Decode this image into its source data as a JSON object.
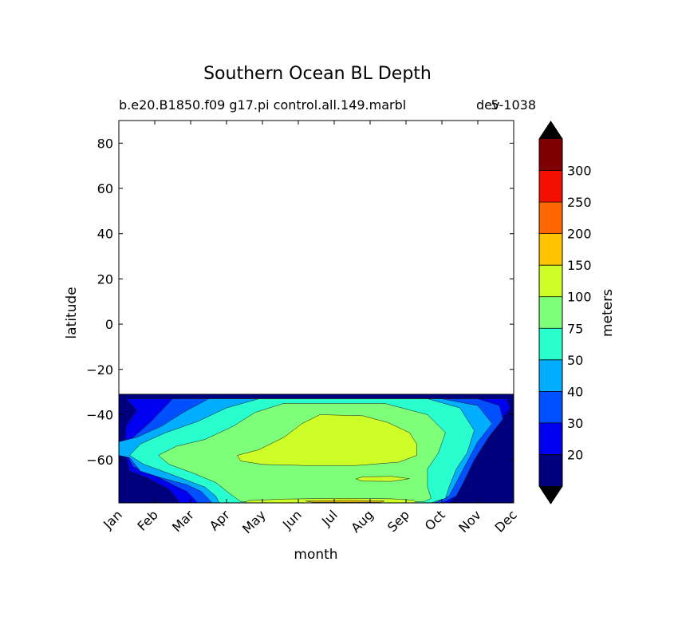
{
  "chart_data": {
    "type": "contourf",
    "title": "Southern Ocean BL Depth",
    "subtitle_left": "b.e20.B1850.f09 g17.pi control.all.149.marbl",
    "subtitle_right": "5-1038",
    "subtitle_overlap": "dev",
    "xlabel": "month",
    "ylabel": "latitude",
    "months": [
      "Jan",
      "Feb",
      "Mar",
      "Apr",
      "May",
      "Jun",
      "Jul",
      "Aug",
      "Sep",
      "Oct",
      "Nov",
      "Dec"
    ],
    "xlim": [
      0,
      11
    ],
    "ylim": [
      -79,
      90
    ],
    "yticks": [
      80,
      60,
      40,
      20,
      0,
      -20,
      -40,
      -60
    ],
    "ytick_labels": [
      "80",
      "60",
      "40",
      "20",
      "0",
      "−20",
      "−40",
      "−60"
    ],
    "data_lat_range": [
      -79,
      -31
    ],
    "colorbar": {
      "label": "meters",
      "levels": [
        10,
        20,
        30,
        40,
        50,
        75,
        100,
        150,
        200,
        250,
        300,
        350
      ],
      "tick_labels": [
        "20",
        "30",
        "40",
        "50",
        "75",
        "100",
        "150",
        "200",
        "250",
        "300"
      ],
      "colors": [
        "#00007f",
        "#0000f0",
        "#0050ff",
        "#00adff",
        "#29ffce",
        "#7dff7a",
        "#cefe28",
        "#ffc400",
        "#ff6800",
        "#f40f00",
        "#7f0000"
      ],
      "extend_low_color": "#000000",
      "extend_high_color": "#000000"
    },
    "regions": [
      {
        "level": "10-20",
        "polygon": [
          [
            0,
            -31
          ],
          [
            11,
            -31
          ],
          [
            11,
            -79
          ],
          [
            0,
            -79
          ]
        ]
      },
      {
        "level": "20-30",
        "polygon": [
          [
            0.2,
            -33
          ],
          [
            10.8,
            -33
          ],
          [
            10.9,
            -37
          ],
          [
            10.4,
            -48
          ],
          [
            10,
            -58
          ],
          [
            9.7,
            -67
          ],
          [
            9.4,
            -76
          ],
          [
            9.2,
            -79
          ],
          [
            1.7,
            -79
          ],
          [
            1.4,
            -73
          ],
          [
            0.8,
            -68
          ],
          [
            0.3,
            -65
          ],
          [
            0.15,
            -55
          ],
          [
            0.2,
            -45
          ],
          [
            0.5,
            -38
          ]
        ]
      },
      {
        "level": "30-40",
        "polygon": [
          [
            1.5,
            -33
          ],
          [
            10,
            -33
          ],
          [
            10.6,
            -36
          ],
          [
            10.7,
            -42
          ],
          [
            10.3,
            -50
          ],
          [
            9.9,
            -60
          ],
          [
            9.6,
            -70
          ],
          [
            9.4,
            -76
          ],
          [
            9.0,
            -79
          ],
          [
            2.2,
            -79
          ],
          [
            1.9,
            -74
          ],
          [
            1.5,
            -71
          ],
          [
            0.9,
            -66
          ],
          [
            0.4,
            -63
          ],
          [
            0.2,
            -57
          ],
          [
            0.4,
            -50
          ],
          [
            0.9,
            -43
          ]
        ]
      },
      {
        "level": "40-50",
        "polygon": [
          [
            2.5,
            -33
          ],
          [
            9,
            -33
          ],
          [
            10,
            -36
          ],
          [
            10.4,
            -44
          ],
          [
            10,
            -52
          ],
          [
            9.7,
            -61
          ],
          [
            9.4,
            -70
          ],
          [
            9.2,
            -76
          ],
          [
            8.8,
            -79
          ],
          [
            2.6,
            -79
          ],
          [
            2.3,
            -74
          ],
          [
            1.9,
            -71
          ],
          [
            1.2,
            -68
          ],
          [
            0.6,
            -65
          ],
          [
            0.3,
            -59
          ],
          [
            0,
            -58
          ],
          [
            0,
            -52
          ],
          [
            0.5,
            -50
          ],
          [
            1.2,
            -45
          ],
          [
            1.8,
            -39
          ]
        ]
      },
      {
        "level": "50-75",
        "polygon": [
          [
            3.9,
            -33
          ],
          [
            8.6,
            -33
          ],
          [
            9.5,
            -37
          ],
          [
            9.9,
            -47
          ],
          [
            9.7,
            -57
          ],
          [
            9.4,
            -64
          ],
          [
            9.2,
            -72
          ],
          [
            9.1,
            -77
          ],
          [
            8.7,
            -79
          ],
          [
            2.8,
            -79
          ],
          [
            2.7,
            -76
          ],
          [
            2.4,
            -72
          ],
          [
            1.9,
            -69
          ],
          [
            1.4,
            -66
          ],
          [
            0.7,
            -62
          ],
          [
            0.3,
            -58
          ],
          [
            0.6,
            -53
          ],
          [
            1.3,
            -48
          ],
          [
            2.2,
            -43
          ],
          [
            3.0,
            -37
          ]
        ]
      },
      {
        "level": "75-100",
        "polygon": [
          [
            4.6,
            -35
          ],
          [
            7.4,
            -35
          ],
          [
            8.6,
            -40
          ],
          [
            9.1,
            -48
          ],
          [
            8.9,
            -57
          ],
          [
            8.6,
            -64
          ],
          [
            8.6,
            -72
          ],
          [
            8.7,
            -77
          ],
          [
            8.5,
            -78.5
          ],
          [
            3.4,
            -78.5
          ],
          [
            3.1,
            -75
          ],
          [
            2.7,
            -70
          ],
          [
            2.1,
            -66
          ],
          [
            1.4,
            -62
          ],
          [
            1.1,
            -58
          ],
          [
            1.6,
            -54
          ],
          [
            2.4,
            -51
          ],
          [
            3.2,
            -45
          ],
          [
            3.8,
            -39
          ]
        ]
      },
      {
        "level": "100-150",
        "polygon": [
          [
            5.6,
            -40
          ],
          [
            6.8,
            -40.5
          ],
          [
            7.5,
            -43.5
          ],
          [
            8.1,
            -48
          ],
          [
            8.3,
            -53
          ],
          [
            8.3,
            -58
          ],
          [
            7.8,
            -61
          ],
          [
            6.6,
            -62.5
          ],
          [
            5.2,
            -62.5
          ],
          [
            4,
            -62
          ],
          [
            3.4,
            -60.5
          ],
          [
            3.3,
            -58
          ],
          [
            3.9,
            -55.5
          ],
          [
            4.6,
            -50
          ],
          [
            5.1,
            -44
          ]
        ]
      },
      {
        "level": "100-150",
        "polygon": [
          [
            6.8,
            -67.5
          ],
          [
            7.6,
            -67.3
          ],
          [
            8.1,
            -68.3
          ],
          [
            7.6,
            -69.5
          ],
          [
            6.8,
            -69.4
          ],
          [
            6.6,
            -68.4
          ]
        ]
      },
      {
        "level": "100-150",
        "polygon": [
          [
            3.6,
            -78
          ],
          [
            4.6,
            -77.3
          ],
          [
            6.2,
            -77
          ],
          [
            7.6,
            -77.2
          ],
          [
            8.2,
            -77.8
          ],
          [
            8.3,
            -79
          ],
          [
            3.5,
            -79
          ]
        ]
      },
      {
        "level": "150-200",
        "polygon": [
          [
            5.2,
            -78.2
          ],
          [
            6.4,
            -77.9
          ],
          [
            7.4,
            -78.2
          ],
          [
            7.3,
            -78.7
          ],
          [
            5.4,
            -78.7
          ]
        ]
      }
    ]
  }
}
